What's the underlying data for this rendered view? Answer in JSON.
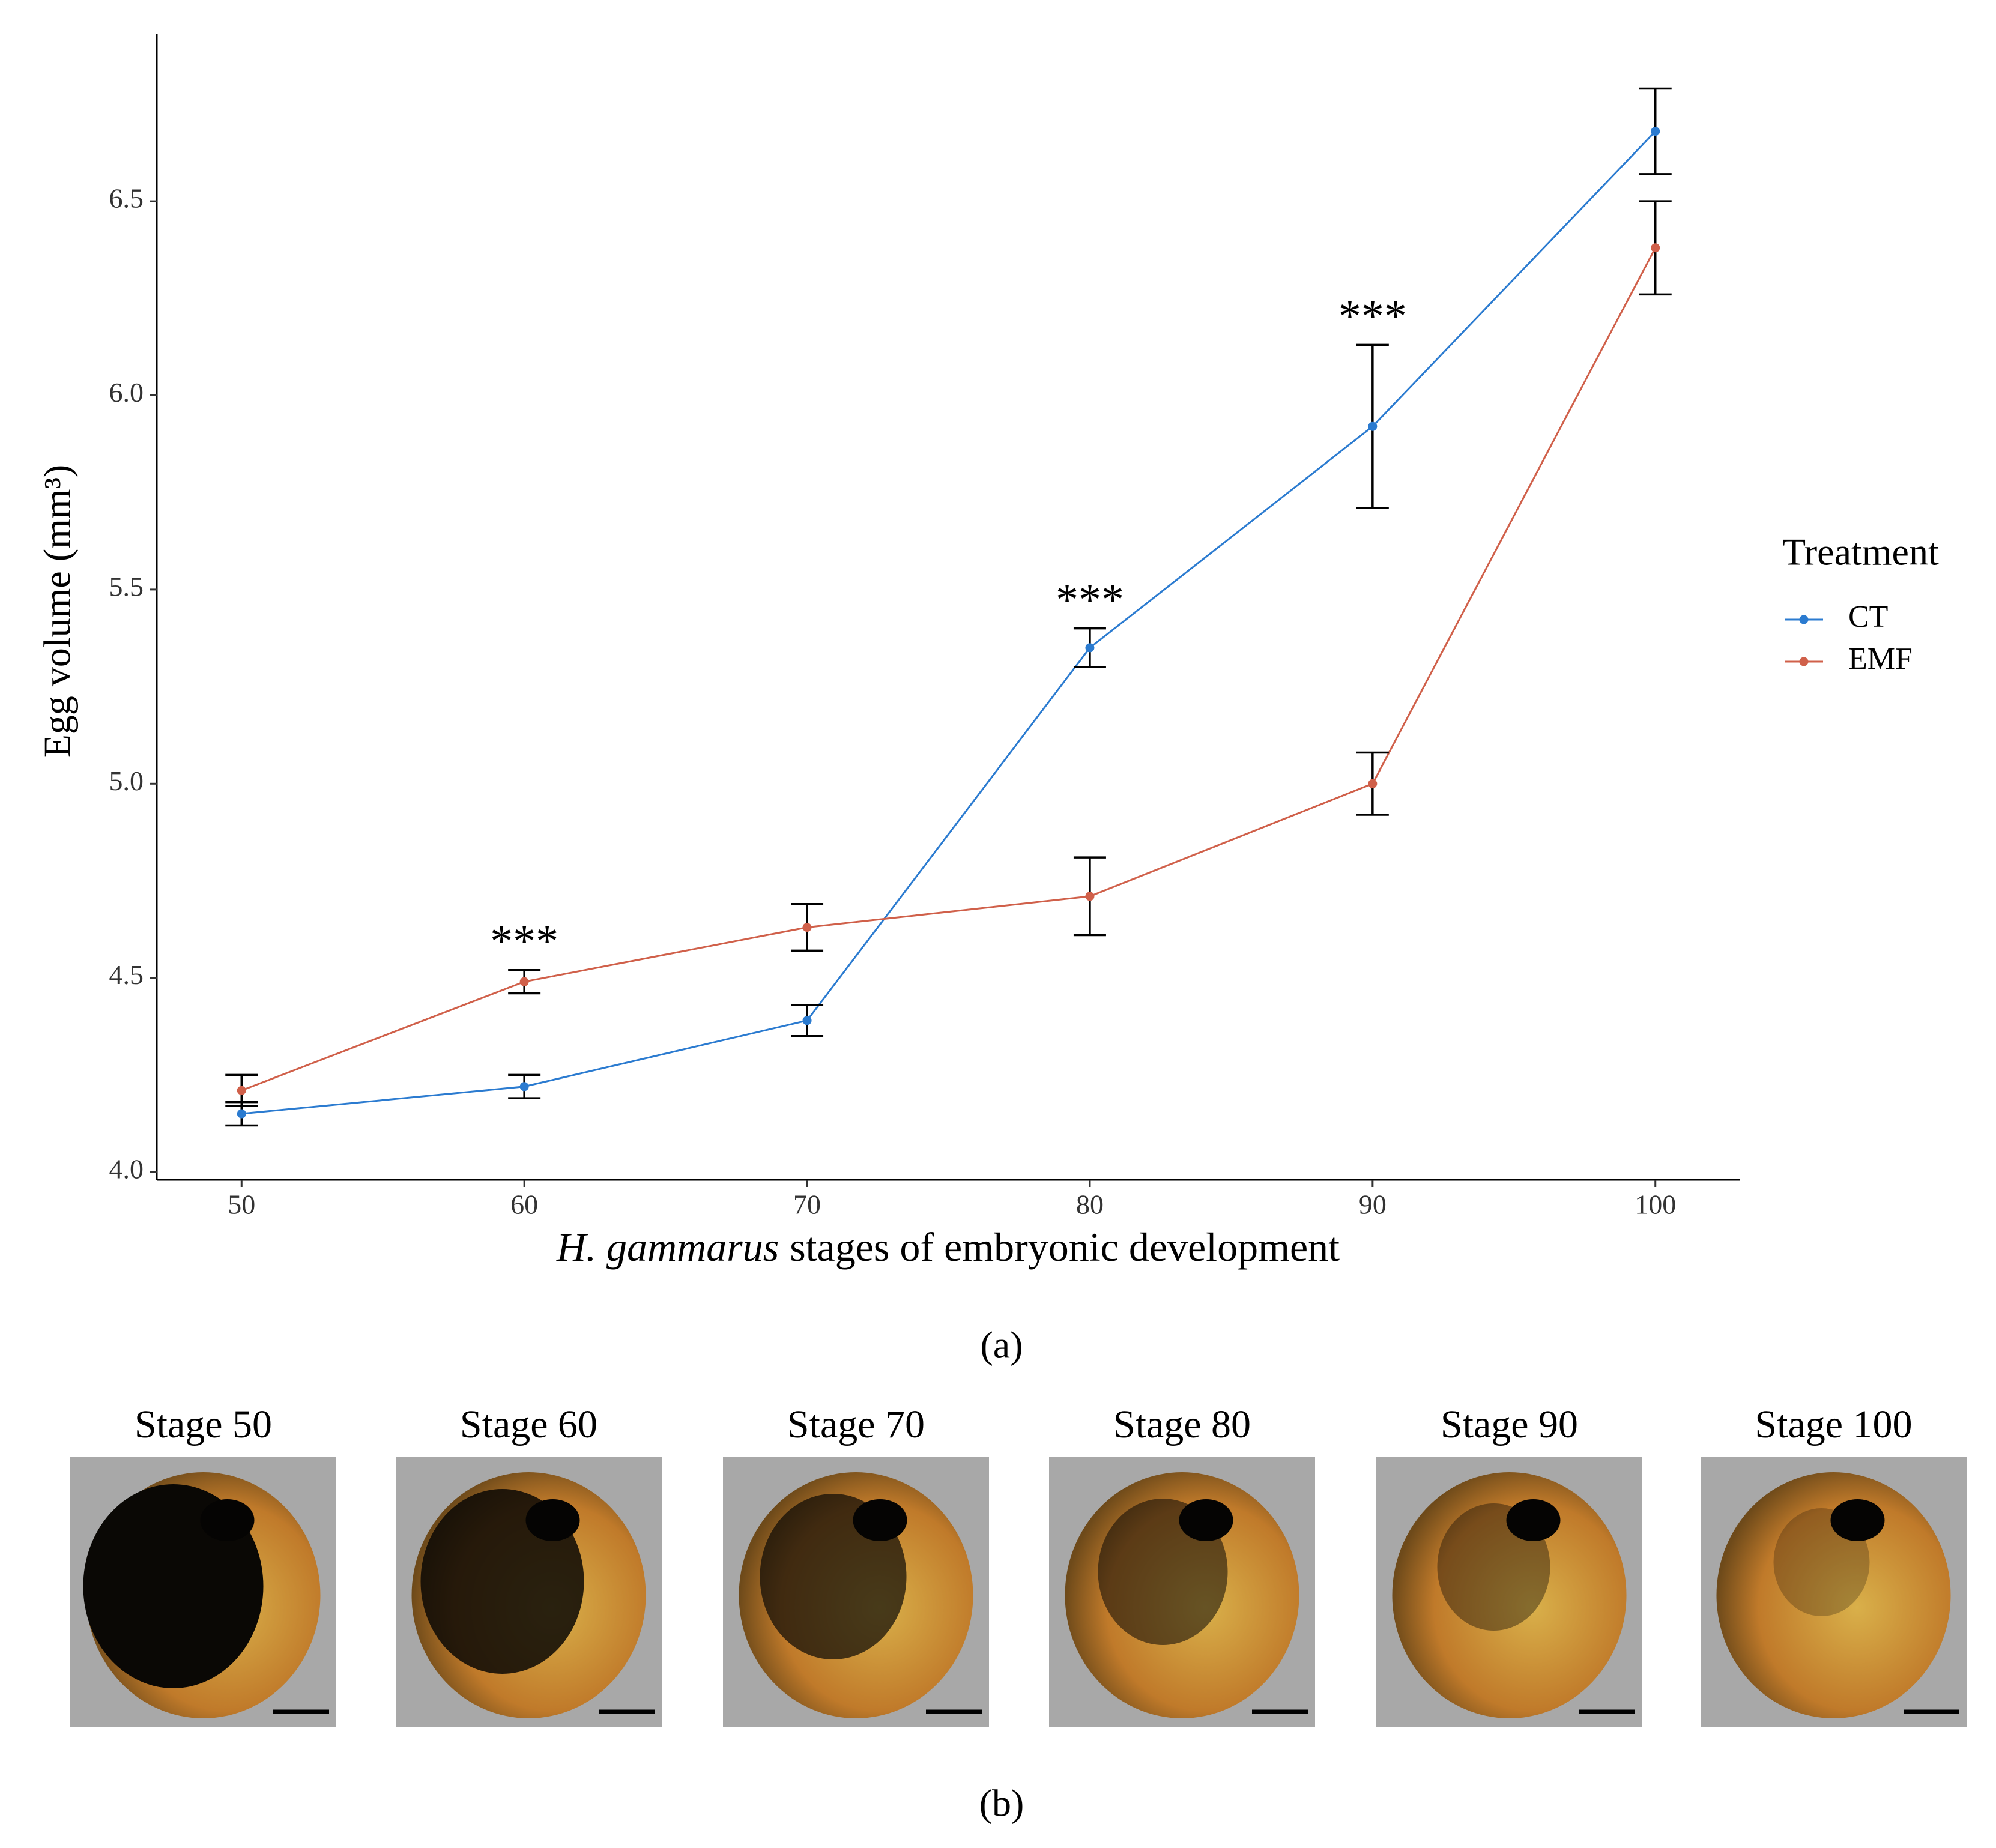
{
  "chart_data": {
    "type": "line",
    "y_label": "Egg volume (mm³)",
    "x_label": {
      "species": "H. gammarus",
      "text": "stages of embryonic development"
    },
    "x": [
      50,
      60,
      70,
      80,
      90,
      100
    ],
    "series": [
      {
        "name": "CT",
        "color": "#2b7bd0",
        "values": [
          4.15,
          4.22,
          4.39,
          5.35,
          5.92,
          6.68
        ],
        "errors": [
          0.03,
          0.03,
          0.04,
          0.05,
          0.21,
          0.11
        ]
      },
      {
        "name": "EMF",
        "color": "#d0604a",
        "values": [
          4.21,
          4.49,
          4.63,
          4.71,
          5.0,
          6.38
        ],
        "errors": [
          0.04,
          0.03,
          0.06,
          0.1,
          0.08,
          0.12
        ]
      }
    ],
    "xlim": [
      47,
      103
    ],
    "xticks": [
      50,
      60,
      70,
      80,
      90,
      100
    ],
    "ylim": [
      3.98,
      6.93
    ],
    "yticks": [
      {
        "value": 4,
        "label": "4.0"
      },
      {
        "value": 4.5,
        "label": "4.5"
      },
      {
        "value": 5,
        "label": "5.0"
      },
      {
        "value": 5.5,
        "label": "5.5"
      },
      {
        "value": 6,
        "label": "6.0"
      },
      {
        "value": 6.5,
        "label": "6.5"
      }
    ],
    "legend_title": "Treatment",
    "legend": "right",
    "annotations": [
      {
        "text": "***",
        "x": 60
      },
      {
        "text": "***",
        "x": 80
      },
      {
        "text": "***",
        "x": 90
      }
    ]
  },
  "panel_labels": [
    "(a)",
    "(b)"
  ],
  "stage_images": [
    "Stage 50",
    "Stage 60",
    "Stage 70",
    "Stage 80",
    "Stage 90",
    "Stage 100"
  ]
}
